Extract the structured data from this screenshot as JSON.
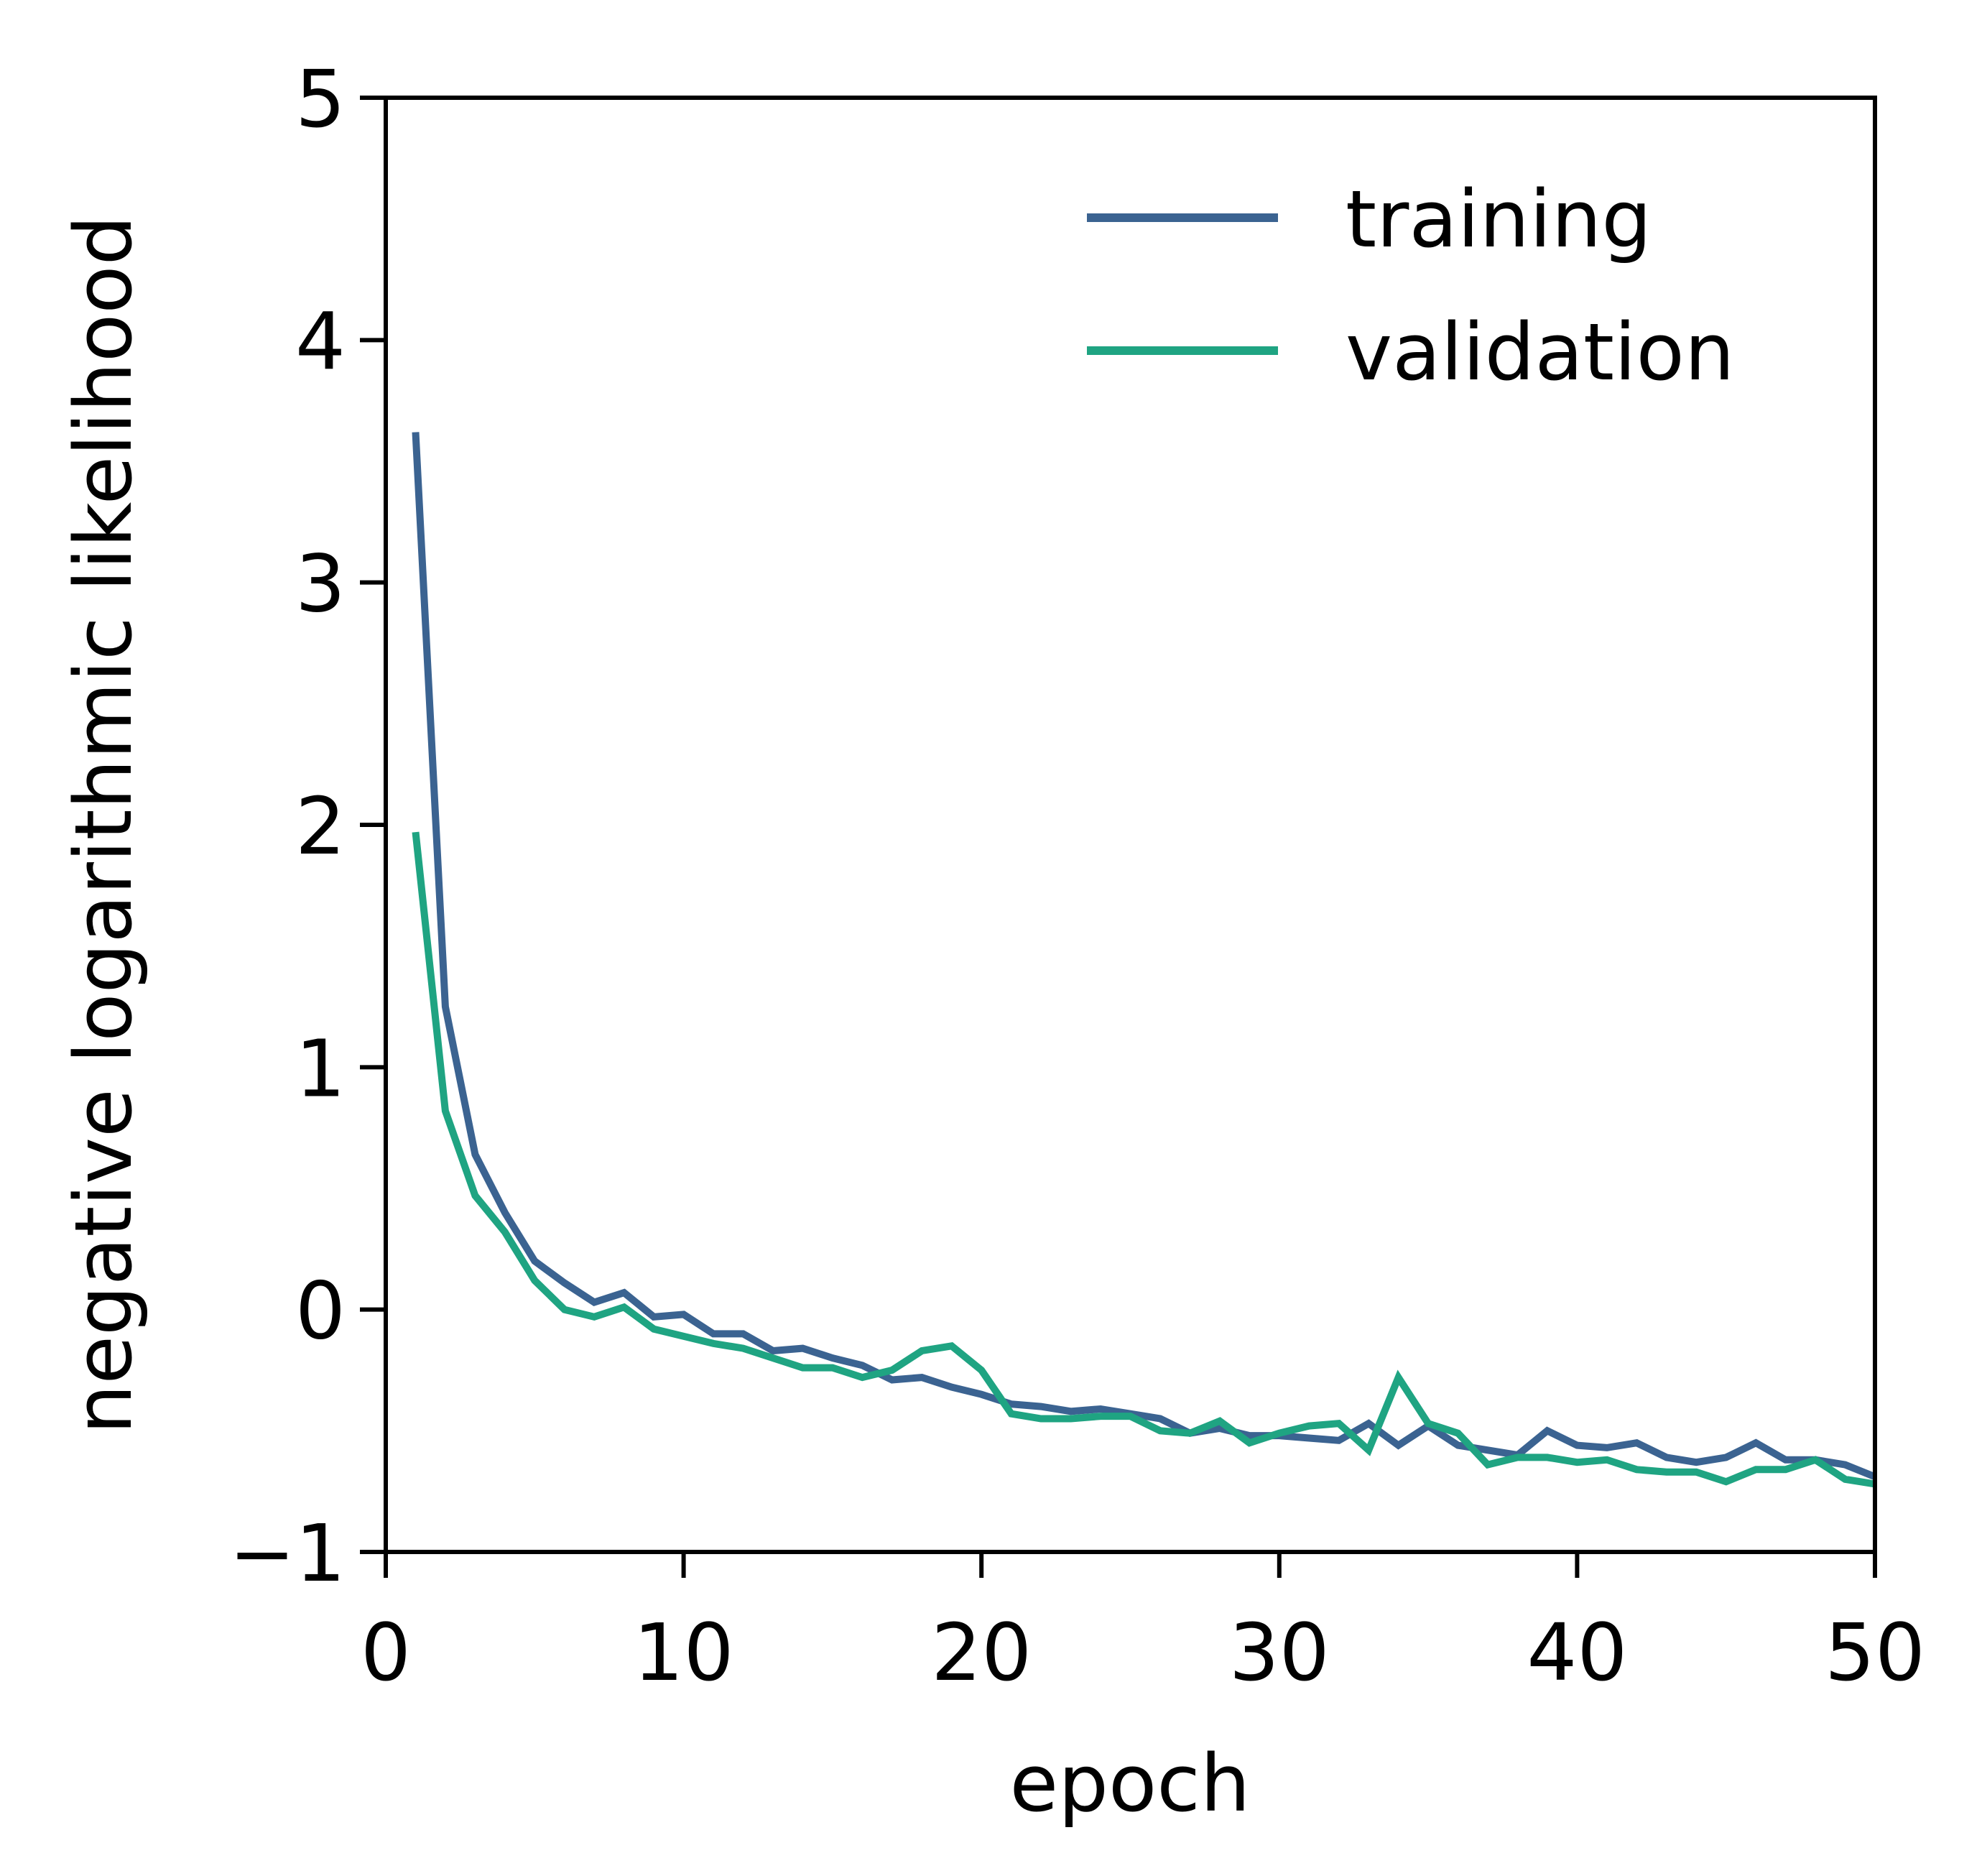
{
  "chart_data": {
    "type": "line",
    "title": "",
    "xlabel": "epoch",
    "ylabel": "negative logarithmic likelihood",
    "xlim": [
      0,
      50
    ],
    "ylim": [
      -1,
      5
    ],
    "xticks": [
      0,
      10,
      20,
      30,
      40,
      50
    ],
    "yticks": [
      -1,
      0,
      1,
      2,
      3,
      4,
      5
    ],
    "xtick_labels": [
      "0",
      "10",
      "20",
      "30",
      "40",
      "50"
    ],
    "ytick_labels": [
      "−1",
      "0",
      "1",
      "2",
      "3",
      "4",
      "5"
    ],
    "grid": false,
    "legend": "top-right",
    "x": [
      1,
      2,
      3,
      4,
      5,
      6,
      7,
      8,
      9,
      10,
      11,
      12,
      13,
      14,
      15,
      16,
      17,
      18,
      19,
      20,
      21,
      22,
      23,
      24,
      25,
      26,
      27,
      28,
      29,
      30,
      31,
      32,
      33,
      34,
      35,
      36,
      37,
      38,
      39,
      40,
      41,
      42,
      43,
      44,
      45,
      46,
      47,
      48,
      49,
      50
    ],
    "series": [
      {
        "name": "training",
        "color": "#3b6391",
        "values": [
          3.62,
          1.25,
          0.64,
          0.4,
          0.2,
          0.11,
          0.03,
          0.07,
          -0.03,
          -0.02,
          -0.1,
          -0.1,
          -0.17,
          -0.16,
          -0.2,
          -0.23,
          -0.29,
          -0.28,
          -0.32,
          -0.35,
          -0.39,
          -0.4,
          -0.42,
          -0.41,
          -0.43,
          -0.45,
          -0.51,
          -0.49,
          -0.52,
          -0.52,
          -0.53,
          -0.54,
          -0.47,
          -0.56,
          -0.48,
          -0.56,
          -0.58,
          -0.6,
          -0.5,
          -0.56,
          -0.57,
          -0.55,
          -0.61,
          -0.63,
          -0.61,
          -0.55,
          -0.62,
          -0.62,
          -0.64,
          -0.69
        ]
      },
      {
        "name": "validation",
        "color": "#1fa482",
        "values": [
          1.97,
          0.82,
          0.47,
          0.32,
          0.12,
          0.0,
          -0.03,
          0.01,
          -0.08,
          -0.11,
          -0.14,
          -0.16,
          -0.2,
          -0.24,
          -0.24,
          -0.28,
          -0.25,
          -0.17,
          -0.15,
          -0.25,
          -0.43,
          -0.45,
          -0.45,
          -0.44,
          -0.44,
          -0.5,
          -0.51,
          -0.46,
          -0.55,
          -0.51,
          -0.48,
          -0.47,
          -0.58,
          -0.28,
          -0.47,
          -0.51,
          -0.64,
          -0.61,
          -0.61,
          -0.63,
          -0.62,
          -0.66,
          -0.67,
          -0.67,
          -0.71,
          -0.66,
          -0.66,
          -0.62,
          -0.7,
          -0.72
        ]
      }
    ]
  }
}
